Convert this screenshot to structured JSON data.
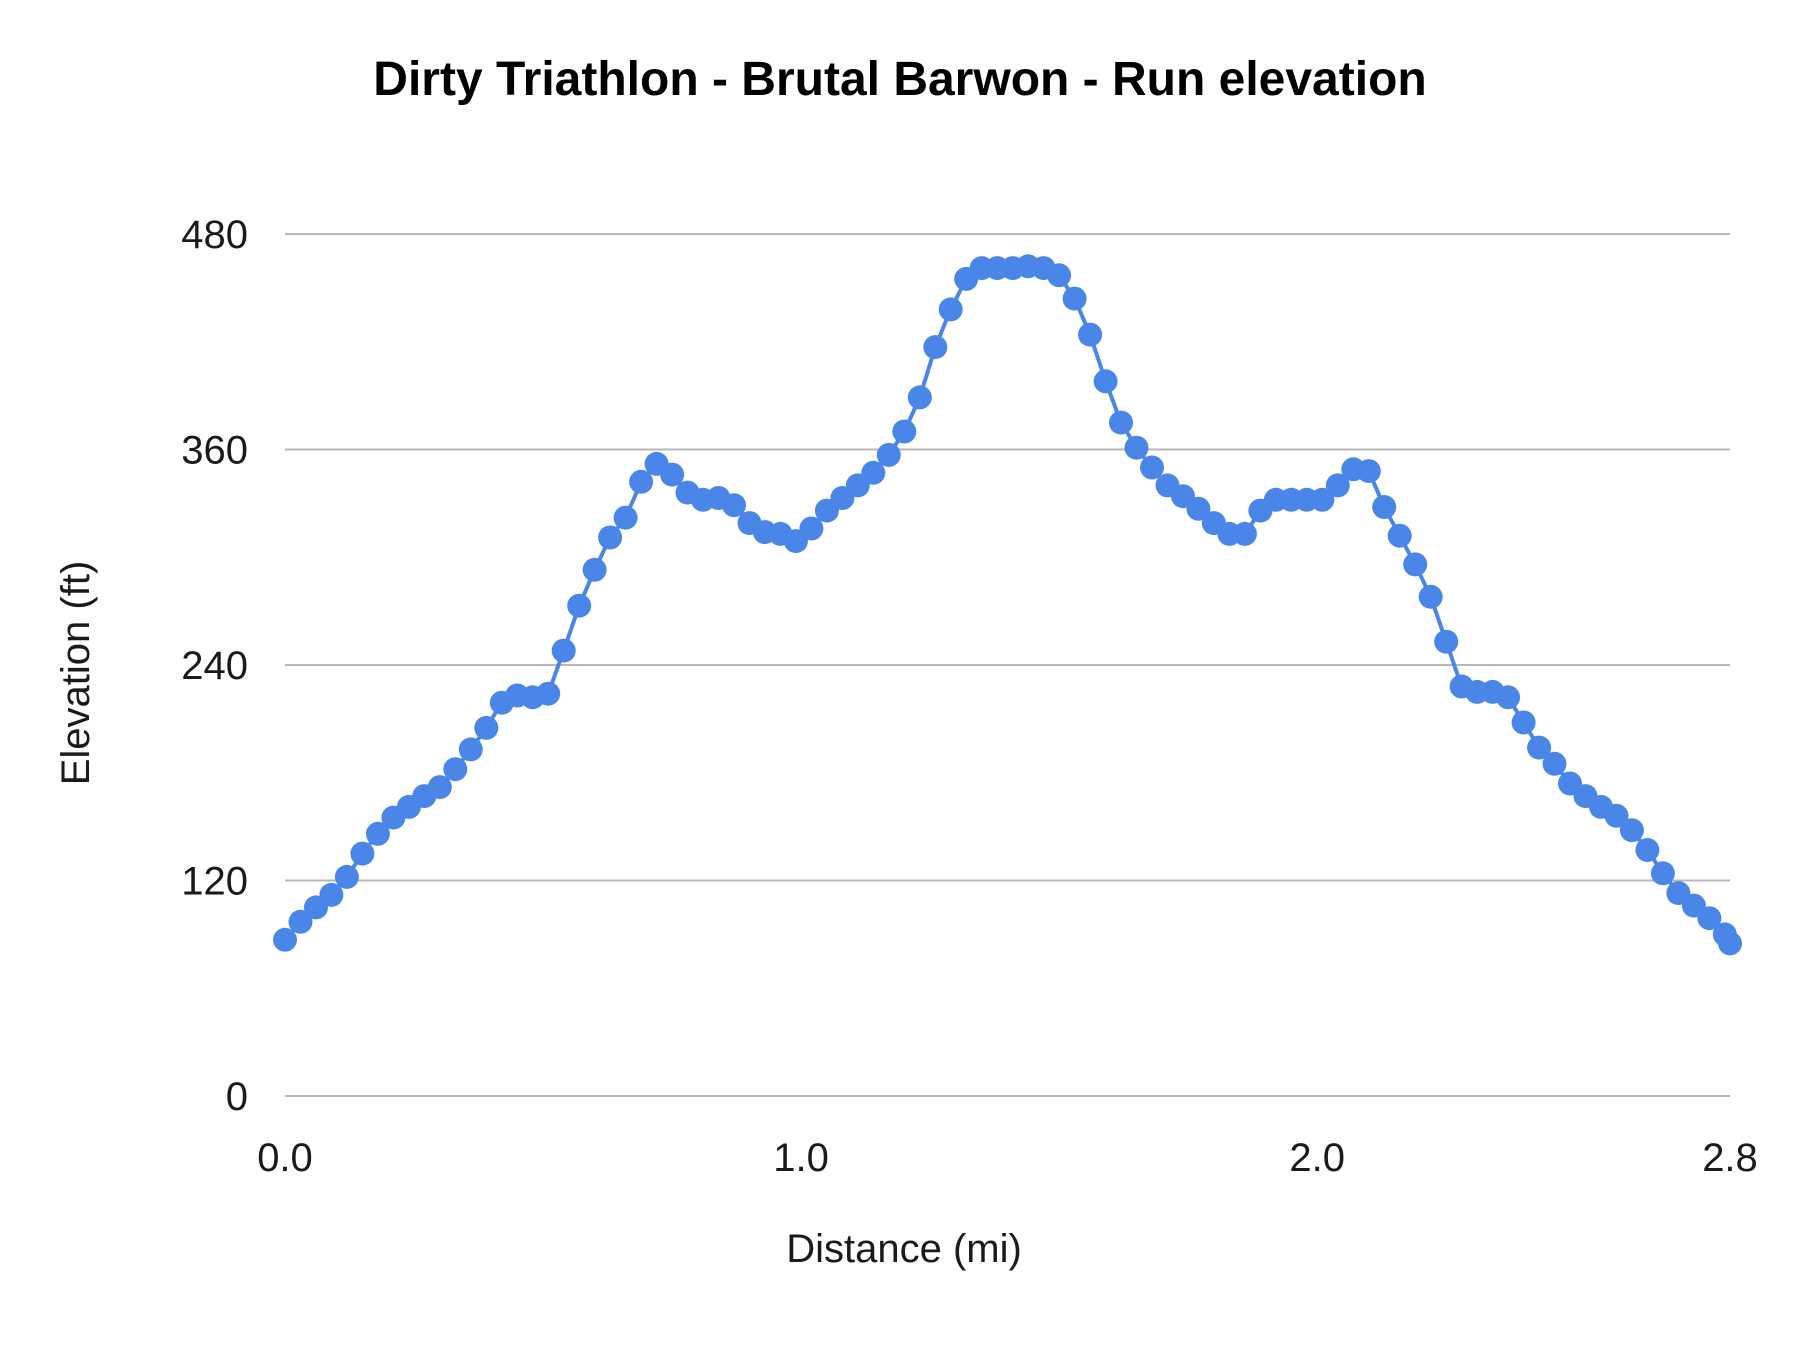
{
  "chart_data": {
    "type": "line",
    "title": "Dirty Triathlon - Brutal Barwon  - Run  elevation",
    "xlabel": "Distance (mi)",
    "ylabel": "Elevation (ft)",
    "xlim": [
      0,
      2.8
    ],
    "ylim": [
      0,
      480
    ],
    "x_ticks": [
      "0.0",
      "1.0",
      "2.0",
      "2.8"
    ],
    "x_tick_values": [
      0,
      1,
      2,
      2.8
    ],
    "y_ticks": [
      "0",
      "120",
      "240",
      "360",
      "480"
    ],
    "y_tick_values": [
      0,
      120,
      240,
      360,
      480
    ],
    "grid": true,
    "color": "#4a86e8",
    "series": [
      {
        "x": [
          0.0,
          0.03,
          0.06,
          0.09,
          0.12,
          0.15,
          0.18,
          0.21,
          0.24,
          0.27,
          0.3,
          0.33,
          0.36,
          0.39,
          0.42,
          0.45,
          0.48,
          0.51,
          0.54,
          0.57,
          0.6,
          0.63,
          0.66,
          0.69,
          0.72,
          0.75,
          0.78,
          0.81,
          0.84,
          0.87,
          0.9,
          0.93,
          0.96,
          0.99,
          1.02,
          1.05,
          1.08,
          1.11,
          1.14,
          1.17,
          1.2,
          1.23,
          1.26,
          1.29,
          1.32,
          1.35,
          1.38,
          1.41,
          1.44,
          1.47,
          1.5,
          1.53,
          1.56,
          1.59,
          1.62,
          1.65,
          1.68,
          1.71,
          1.74,
          1.77,
          1.8,
          1.83,
          1.86,
          1.89,
          1.92,
          1.95,
          1.98,
          2.01,
          2.04,
          2.07,
          2.1,
          2.13,
          2.16,
          2.19,
          2.22,
          2.25,
          2.28,
          2.31,
          2.34,
          2.37,
          2.4,
          2.43,
          2.46,
          2.49,
          2.52,
          2.55,
          2.58,
          2.61,
          2.64,
          2.67,
          2.7,
          2.73,
          2.76,
          2.79,
          2.8
        ],
        "y": [
          87,
          97,
          105,
          112,
          122,
          135,
          146,
          155,
          161,
          167,
          172,
          182,
          193,
          205,
          219,
          223,
          222,
          224,
          248,
          273,
          293,
          311,
          322,
          342,
          352,
          346,
          336,
          332,
          333,
          329,
          319,
          314,
          313,
          309,
          316,
          326,
          333,
          340,
          347,
          357,
          370,
          389,
          417,
          438,
          455,
          461,
          461,
          461,
          462,
          461,
          457,
          444,
          424,
          398,
          375,
          361,
          350,
          340,
          334,
          327,
          319,
          313,
          313,
          326,
          332,
          332,
          332,
          332,
          340,
          349,
          348,
          328,
          312,
          296,
          278,
          253,
          228,
          225,
          225,
          222,
          208,
          194,
          185,
          174,
          167,
          161,
          156,
          148,
          137,
          124,
          113,
          106,
          99,
          90,
          85
        ]
      }
    ]
  }
}
